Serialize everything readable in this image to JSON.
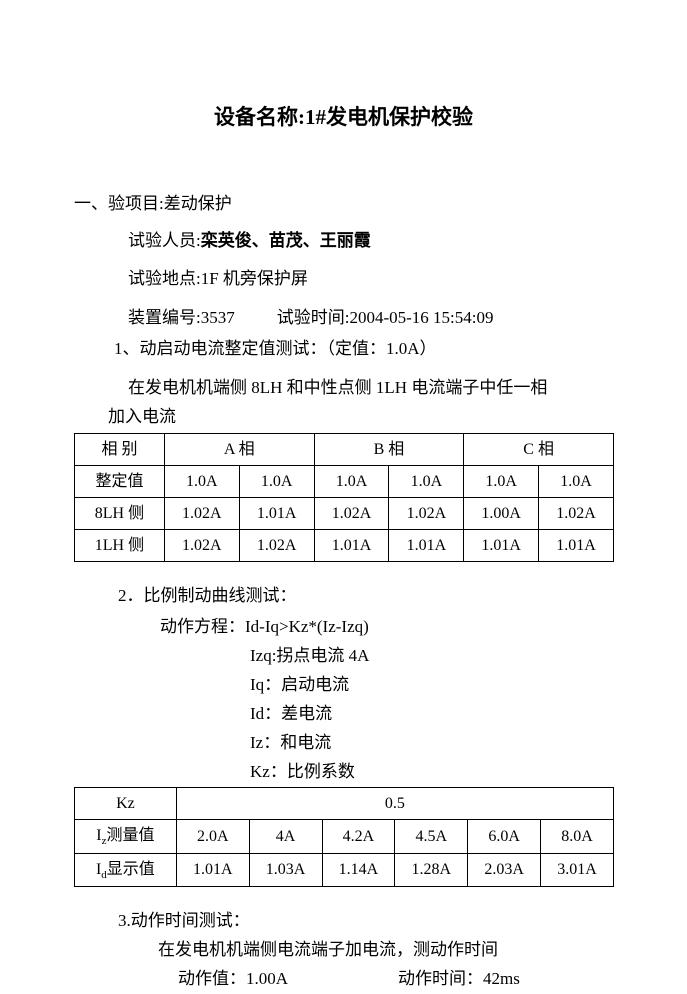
{
  "title": "设备名称:1#发电机保护校验",
  "section": "一、验项目:差动保护",
  "personnel_label": "试验人员:",
  "personnel_names": "栾英俊、苗茂、王丽霞",
  "location": "试验地点:1F 机旁保护屏",
  "device_no": "装置编号:3537",
  "test_time": "试验时间:2004-05-16  15:54:09",
  "test1_title": "1、动启动电流整定值测试：（定值：1.0A）",
  "table1_desc1": "在发电机机端侧 8LH 和中性点侧 1LH 电流端子中任一相",
  "table1_desc2": "加入电流",
  "table1": {
    "row_labels": [
      "相  别",
      "整定值",
      "8LH 侧",
      "1LH 侧"
    ],
    "col_headers": [
      "A  相",
      "B  相",
      "C  相"
    ],
    "rows": [
      [
        "1.0A",
        "1.0A",
        "1.0A",
        "1.0A",
        "1.0A",
        "1.0A"
      ],
      [
        "1.02A",
        "1.01A",
        "1.02A",
        "1.02A",
        "1.00A",
        "1.02A"
      ],
      [
        "1.02A",
        "1.02A",
        "1.01A",
        "1.01A",
        "1.01A",
        "1.01A"
      ]
    ]
  },
  "test2_title": "2．比例制动曲线测试：",
  "eq_main": "动作方程：Id-Iq>Kz*(Iz-Izq)",
  "eq_defs": [
    "Izq:拐点电流  4A",
    "Iq：启动电流",
    "Id：差电流",
    "Iz：和电流",
    "Kz：比例系数"
  ],
  "table2": {
    "kz_label": "Kz",
    "kz_value": "0.5",
    "row_labels_html": [
      "I<sub>z</sub>测量值",
      "I<sub>d</sub>显示值"
    ],
    "rows": [
      [
        "2.0A",
        "4A",
        "4.2A",
        "4.5A",
        "6.0A",
        "8.0A"
      ],
      [
        "1.01A",
        "1.03A",
        "1.14A",
        "1.28A",
        "2.03A",
        "3.01A"
      ]
    ]
  },
  "test3_title": "3.动作时间测试：",
  "test3_line1": "在发电机机端侧电流端子加电流，测动作时间",
  "test3_val": "动作值：1.00A",
  "test3_time": "动作时间：42ms"
}
